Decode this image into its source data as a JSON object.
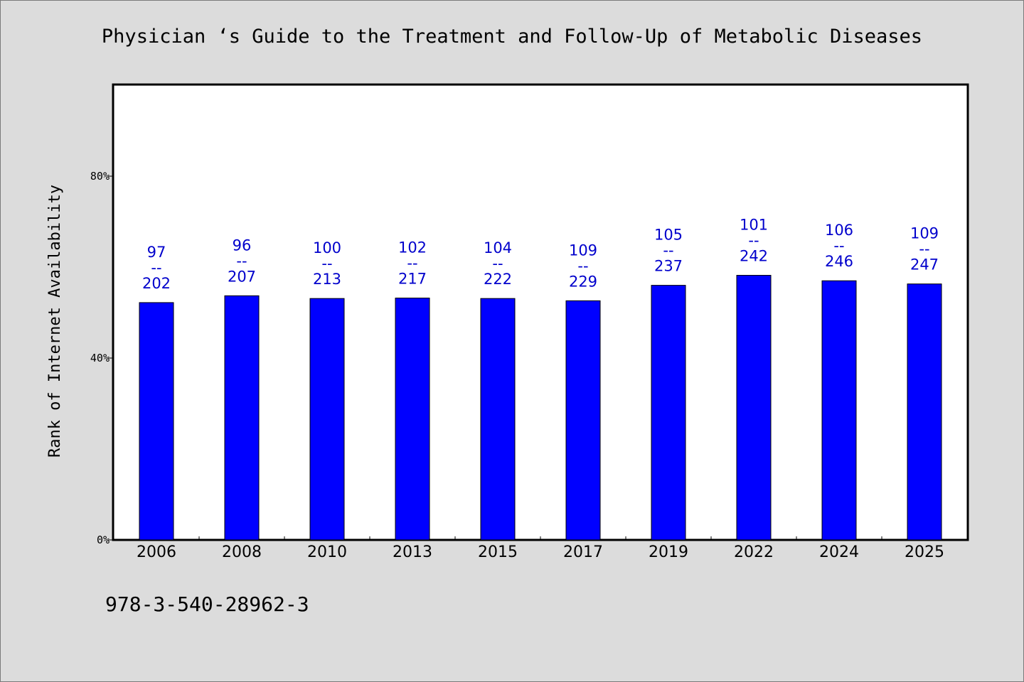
{
  "chart_data": {
    "type": "bar",
    "title": "Physician ‘s Guide to the Treatment and Follow-Up of Metabolic Diseases",
    "ylabel": "Rank of Internet Availability",
    "xlabel": "",
    "ylim": [
      0,
      100
    ],
    "yticks": [
      {
        "value": 0,
        "label": "0%"
      },
      {
        "value": 40,
        "label": "40%"
      },
      {
        "value": 80,
        "label": "80%"
      }
    ],
    "categories": [
      "2006",
      "2008",
      "2010",
      "2013",
      "2015",
      "2017",
      "2019",
      "2022",
      "2024",
      "2025"
    ],
    "values": [
      52.2,
      53.7,
      53.1,
      53.2,
      53.1,
      52.6,
      56.0,
      58.2,
      57.0,
      56.3
    ],
    "bar_labels": [
      {
        "top": "97",
        "sep": "--",
        "bottom": "202"
      },
      {
        "top": "96",
        "sep": "--",
        "bottom": "207"
      },
      {
        "top": "100",
        "sep": "--",
        "bottom": "213"
      },
      {
        "top": "102",
        "sep": "--",
        "bottom": "217"
      },
      {
        "top": "104",
        "sep": "--",
        "bottom": "222"
      },
      {
        "top": "109",
        "sep": "--",
        "bottom": "229"
      },
      {
        "top": "105",
        "sep": "--",
        "bottom": "237"
      },
      {
        "top": "101",
        "sep": "--",
        "bottom": "242"
      },
      {
        "top": "106",
        "sep": "--",
        "bottom": "246"
      },
      {
        "top": "109",
        "sep": "--",
        "bottom": "247"
      }
    ],
    "grid": false,
    "colors": {
      "bar": "#0000ff",
      "label": "#0000cc",
      "background": "#dcdcdc",
      "plot": "#ffffff"
    }
  },
  "footer": {
    "isbn": "978-3-540-28962-3"
  }
}
